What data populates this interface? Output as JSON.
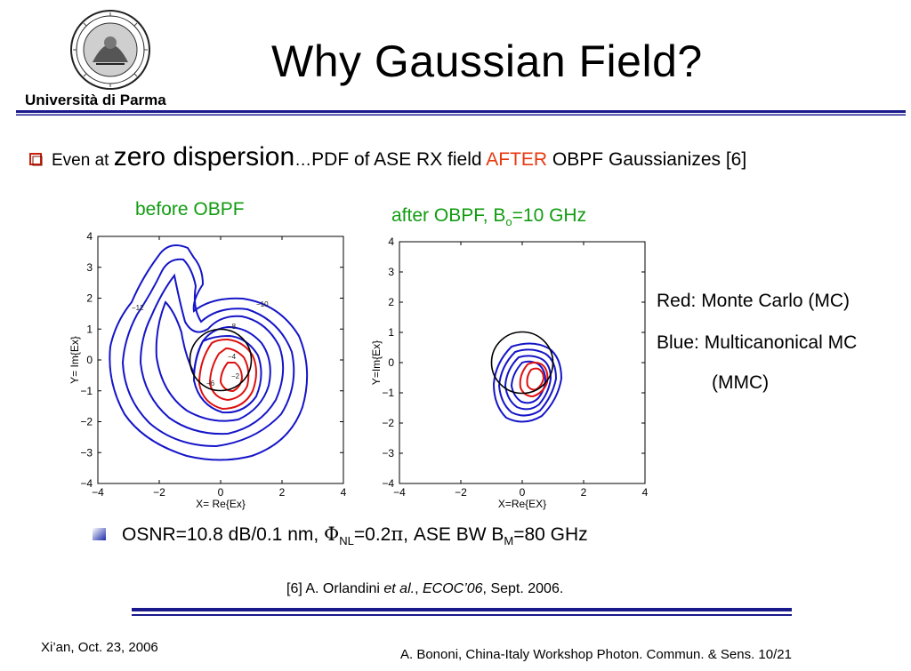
{
  "header": {
    "university": "Università di Parma",
    "title": "Why Gaussian Field?"
  },
  "bullet": {
    "part1": "Even at ",
    "part2": "zero dispersion",
    "part3": "…",
    "part4": "PDF of ASE RX field ",
    "part5": "AFTER",
    "part6": " OBPF Gaussianizes [6]"
  },
  "plots": {
    "before_label": "before OBPF",
    "after_label_pre": "after OBPF, B",
    "after_label_sub": "o",
    "after_label_post": "=10 GHz"
  },
  "chart_data": [
    {
      "type": "line",
      "xlabel": "X= Re{Ex}",
      "ylabel": "Y= Im{Ex}",
      "xlim": [
        -4,
        4
      ],
      "ylim": [
        -4,
        4
      ],
      "x_ticks": [
        "−4",
        "−2",
        "0",
        "2",
        "4"
      ],
      "y_ticks": [
        "4",
        "3",
        "2",
        "1",
        "0",
        "−1",
        "−2",
        "−3",
        "−4"
      ],
      "contour_labels": [
        "−12",
        "−10",
        "−8",
        "−6",
        "−4",
        "−2"
      ],
      "unit_circle_radius": 1,
      "colors": {
        "mc": "#dd1111",
        "mmc": "#1515c8"
      }
    },
    {
      "type": "line",
      "xlabel": "X=Re{EX}",
      "ylabel": "Y=Im{Ex}",
      "xlim": [
        -4,
        4
      ],
      "ylim": [
        -4,
        4
      ],
      "x_ticks": [
        "−4",
        "−2",
        "0",
        "2",
        "4"
      ],
      "y_ticks": [
        "4",
        "3",
        "2",
        "1",
        "0",
        "−1",
        "−2",
        "−3",
        "−4"
      ],
      "unit_circle_radius": 1,
      "colors": {
        "mc": "#dd1111",
        "mmc": "#1515c8"
      }
    }
  ],
  "legend": {
    "red": "Red: Monte Carlo (MC)",
    "blue": "Blue: Multicanonical MC",
    "blue_cont": "(MMC)"
  },
  "params": {
    "p1": "OSNR=10.8 dB/0.1 nm, ",
    "phi": "Φ",
    "nl": "NL",
    "p2": "=0.2",
    "pi": "π",
    "p3": ", ASE BW B",
    "m": "M",
    "p4": "=80 GHz"
  },
  "reference": {
    "r1": "[6] A. Orlandini ",
    "r2": "et al.",
    "r3": ", ",
    "r4": "ECOC’06",
    "r5": ", Sept. 2006."
  },
  "footer": {
    "left": "Xi’an, Oct. 23, 2006",
    "right": "A. Bononi, China-Italy Workshop Photon. Commun. &  Sens.  10/21"
  },
  "colors": {
    "navy_rule": "#1a1a8c",
    "accent_red": "#e8380f",
    "green": "#119c11"
  }
}
